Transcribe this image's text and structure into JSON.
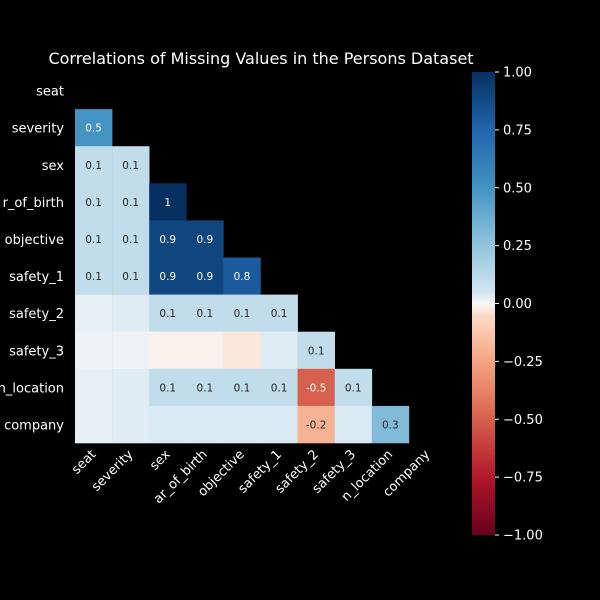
{
  "chart_data": {
    "type": "heatmap",
    "title": "Correlations of Missing Values in the Persons Dataset",
    "row_labels": [
      "seat",
      "severity",
      "sex",
      "r_of_birth",
      "objective",
      "safety_1",
      "safety_2",
      "safety_3",
      "n_location",
      "company"
    ],
    "col_labels": [
      "seat",
      "severity",
      "sex",
      "ar_of_birth",
      "objective",
      "safety_1",
      "safety_2",
      "safety_3",
      "n_location",
      "company"
    ],
    "values": [
      [
        null,
        null,
        null,
        null,
        null,
        null,
        null,
        null,
        null,
        null
      ],
      [
        0.5,
        null,
        null,
        null,
        null,
        null,
        null,
        null,
        null,
        null
      ],
      [
        0.1,
        0.1,
        null,
        null,
        null,
        null,
        null,
        null,
        null,
        null
      ],
      [
        0.1,
        0.1,
        1.0,
        null,
        null,
        null,
        null,
        null,
        null,
        null
      ],
      [
        0.1,
        0.1,
        0.9,
        0.9,
        null,
        null,
        null,
        null,
        null,
        null
      ],
      [
        0.1,
        0.1,
        0.9,
        0.9,
        0.8,
        null,
        null,
        null,
        null,
        null
      ],
      [
        0.02,
        0.03,
        0.1,
        0.1,
        0.1,
        0.1,
        null,
        null,
        null,
        null
      ],
      [
        0.01,
        0.01,
        -0.01,
        -0.01,
        -0.03,
        0.03,
        0.1,
        null,
        null,
        null
      ],
      [
        0.02,
        0.03,
        0.1,
        0.1,
        0.1,
        0.1,
        -0.5,
        0.1,
        null,
        null
      ],
      [
        0.02,
        0.03,
        0.04,
        0.04,
        0.04,
        0.04,
        -0.2,
        0.04,
        0.3,
        null
      ]
    ],
    "cell_labels": [
      [
        "",
        "",
        "",
        "",
        "",
        "",
        "",
        "",
        "",
        ""
      ],
      [
        "0.5",
        "",
        "",
        "",
        "",
        "",
        "",
        "",
        "",
        ""
      ],
      [
        "0.1",
        "0.1",
        "",
        "",
        "",
        "",
        "",
        "",
        "",
        ""
      ],
      [
        "0.1",
        "0.1",
        "1",
        "",
        "",
        "",
        "",
        "",
        "",
        ""
      ],
      [
        "0.1",
        "0.1",
        "0.9",
        "0.9",
        "",
        "",
        "",
        "",
        "",
        ""
      ],
      [
        "0.1",
        "0.1",
        "0.9",
        "0.9",
        "0.8",
        "",
        "",
        "",
        "",
        ""
      ],
      [
        "",
        "",
        "0.1",
        "0.1",
        "0.1",
        "0.1",
        "",
        "",
        "",
        ""
      ],
      [
        "",
        "",
        "",
        "",
        "",
        "",
        "0.1",
        "",
        "",
        ""
      ],
      [
        "",
        "",
        "0.1",
        "0.1",
        "0.1",
        "0.1",
        "-0.5",
        "0.1",
        "",
        ""
      ],
      [
        "",
        "",
        "",
        "",
        "",
        "",
        "-0.2",
        "",
        "0.3",
        ""
      ]
    ],
    "vmin": -1,
    "vmax": 1,
    "colormap": "RdBu",
    "colorbar_ticks": [
      "1.00",
      "0.75",
      "0.50",
      "0.25",
      "0.00",
      "−0.25",
      "−0.50",
      "−0.75",
      "−1.00"
    ],
    "colorbar_tick_values": [
      1,
      0.75,
      0.5,
      0.25,
      0,
      -0.25,
      -0.5,
      -0.75,
      -1
    ],
    "background": "#000000",
    "text_color": "#ffffff"
  }
}
